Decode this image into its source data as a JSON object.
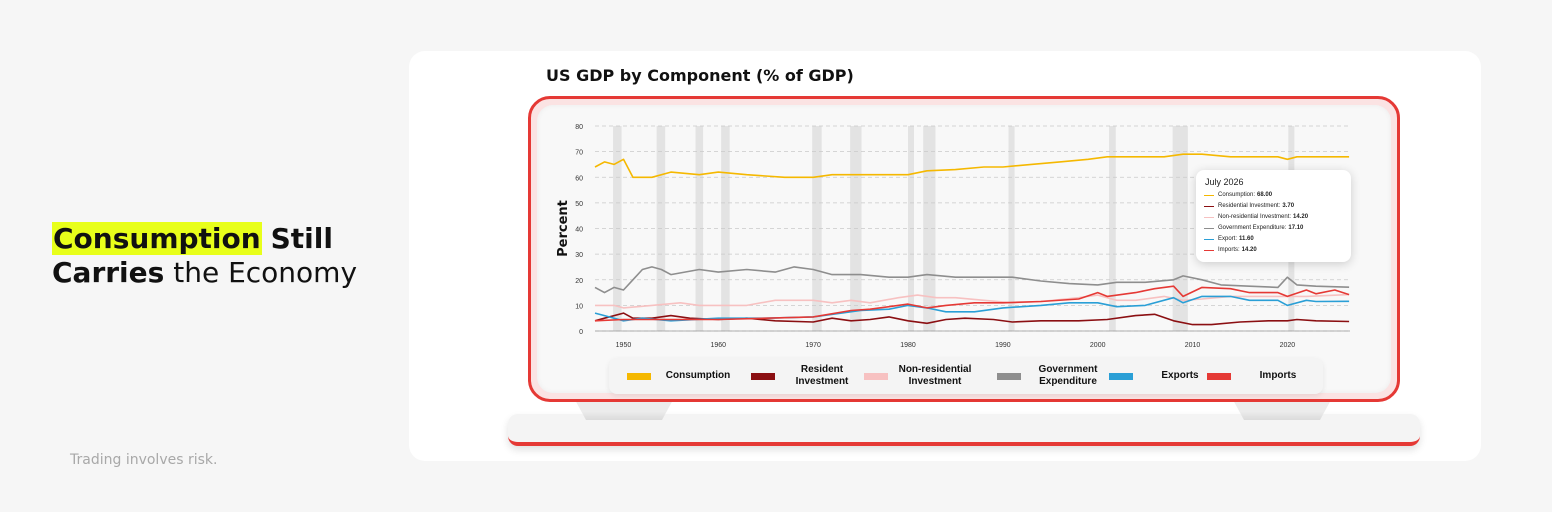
{
  "headline": {
    "word1": "Consumption",
    "word2": "Still",
    "word3": "Carries",
    "word4": "the Economy"
  },
  "disclaimer": "Trading involves risk.",
  "colors": {
    "highlight": "#e8ff1a",
    "accent": "#e53935"
  },
  "chart_data": {
    "type": "line",
    "title": "US GDP by Component (% of GDP)",
    "ylabel": "Percent",
    "xlabel": "",
    "ylim": [
      0,
      80
    ],
    "xlim": [
      1947,
      2026.6
    ],
    "yticks": [
      "0",
      "10",
      "20",
      "30",
      "40",
      "50",
      "60",
      "70",
      "80"
    ],
    "xticks": [
      "1950",
      "1960",
      "1970",
      "1980",
      "1990",
      "2000",
      "2010",
      "2020"
    ],
    "grid": "dashed horizontal",
    "recessions": [
      [
        1948.9,
        1949.8
      ],
      [
        1953.5,
        1954.4
      ],
      [
        1957.6,
        1958.4
      ],
      [
        1960.3,
        1961.2
      ],
      [
        1969.9,
        1970.9
      ],
      [
        1973.9,
        1975.1
      ],
      [
        1980.0,
        1980.6
      ],
      [
        1981.6,
        1982.9
      ],
      [
        1990.6,
        1991.2
      ],
      [
        2001.2,
        2001.9
      ],
      [
        2007.9,
        2009.5
      ],
      [
        2020.1,
        2020.5
      ]
    ],
    "series": [
      {
        "name": "Consumption",
        "color": "#f5b800",
        "points": [
          [
            1947,
            64
          ],
          [
            1948,
            66
          ],
          [
            1949,
            65
          ],
          [
            1950,
            67
          ],
          [
            1951,
            60
          ],
          [
            1952,
            60
          ],
          [
            1953,
            60
          ],
          [
            1955,
            62
          ],
          [
            1958,
            61
          ],
          [
            1960,
            62
          ],
          [
            1963,
            61
          ],
          [
            1967,
            60
          ],
          [
            1970,
            60
          ],
          [
            1972,
            61
          ],
          [
            1975,
            61
          ],
          [
            1978,
            61
          ],
          [
            1980,
            61
          ],
          [
            1982,
            62.5
          ],
          [
            1985,
            63
          ],
          [
            1988,
            64
          ],
          [
            1990,
            64
          ],
          [
            1993,
            65
          ],
          [
            1996,
            66
          ],
          [
            1999,
            67
          ],
          [
            2001,
            68
          ],
          [
            2004,
            68
          ],
          [
            2007,
            68
          ],
          [
            2009,
            69
          ],
          [
            2011,
            69
          ],
          [
            2014,
            68
          ],
          [
            2017,
            68
          ],
          [
            2019,
            68
          ],
          [
            2020,
            67
          ],
          [
            2021,
            68
          ],
          [
            2023,
            68
          ],
          [
            2026.5,
            68
          ]
        ]
      },
      {
        "name": "Residential Investment",
        "color": "#8b0f12",
        "points": [
          [
            1947,
            4
          ],
          [
            1948,
            5
          ],
          [
            1950,
            7
          ],
          [
            1951,
            5
          ],
          [
            1953,
            5
          ],
          [
            1955,
            6
          ],
          [
            1957,
            5
          ],
          [
            1960,
            4.5
          ],
          [
            1963,
            5
          ],
          [
            1966,
            4
          ],
          [
            1970,
            3.5
          ],
          [
            1972,
            5
          ],
          [
            1974,
            4
          ],
          [
            1976,
            4.5
          ],
          [
            1978,
            5.5
          ],
          [
            1980,
            4
          ],
          [
            1982,
            3
          ],
          [
            1984,
            4.5
          ],
          [
            1986,
            5
          ],
          [
            1989,
            4.5
          ],
          [
            1991,
            3.5
          ],
          [
            1994,
            4
          ],
          [
            1998,
            4
          ],
          [
            2001,
            4.5
          ],
          [
            2004,
            6
          ],
          [
            2006,
            6.5
          ],
          [
            2008,
            4
          ],
          [
            2010,
            2.5
          ],
          [
            2012,
            2.5
          ],
          [
            2015,
            3.5
          ],
          [
            2018,
            4
          ],
          [
            2020,
            4
          ],
          [
            2021,
            4.5
          ],
          [
            2023,
            4
          ],
          [
            2026.5,
            3.7
          ]
        ]
      },
      {
        "name": "Non-residential Investment",
        "color": "#f7c1c1",
        "points": [
          [
            1947,
            10
          ],
          [
            1949,
            10
          ],
          [
            1950,
            9
          ],
          [
            1953,
            10
          ],
          [
            1956,
            11
          ],
          [
            1958,
            10
          ],
          [
            1960,
            10
          ],
          [
            1963,
            10
          ],
          [
            1966,
            12
          ],
          [
            1970,
            12
          ],
          [
            1972,
            11
          ],
          [
            1974,
            12
          ],
          [
            1976,
            11
          ],
          [
            1979,
            13
          ],
          [
            1981,
            14
          ],
          [
            1983,
            13
          ],
          [
            1985,
            13
          ],
          [
            1988,
            12
          ],
          [
            1991,
            11
          ],
          [
            1994,
            11.5
          ],
          [
            1998,
            13
          ],
          [
            2000,
            14
          ],
          [
            2002,
            12
          ],
          [
            2004,
            12
          ],
          [
            2007,
            13.5
          ],
          [
            2009,
            12
          ],
          [
            2011,
            12.5
          ],
          [
            2014,
            13.5
          ],
          [
            2017,
            13.5
          ],
          [
            2020,
            13.5
          ],
          [
            2022,
            13.5
          ],
          [
            2026.5,
            14.2
          ]
        ]
      },
      {
        "name": "Government Expenditure",
        "color": "#8e8e8e",
        "points": [
          [
            1947,
            17
          ],
          [
            1948,
            15
          ],
          [
            1949,
            17
          ],
          [
            1950,
            16
          ],
          [
            1951,
            20
          ],
          [
            1952,
            24
          ],
          [
            1953,
            25
          ],
          [
            1954,
            24
          ],
          [
            1955,
            22
          ],
          [
            1958,
            24
          ],
          [
            1960,
            23
          ],
          [
            1963,
            24
          ],
          [
            1966,
            23
          ],
          [
            1968,
            25
          ],
          [
            1970,
            24
          ],
          [
            1972,
            22
          ],
          [
            1975,
            22
          ],
          [
            1978,
            21
          ],
          [
            1980,
            21
          ],
          [
            1982,
            22
          ],
          [
            1985,
            21
          ],
          [
            1988,
            21
          ],
          [
            1991,
            21
          ],
          [
            1994,
            19.5
          ],
          [
            1997,
            18.5
          ],
          [
            2000,
            18
          ],
          [
            2002,
            19
          ],
          [
            2005,
            19
          ],
          [
            2008,
            20
          ],
          [
            2009,
            21.5
          ],
          [
            2011,
            20
          ],
          [
            2013,
            18
          ],
          [
            2016,
            17.5
          ],
          [
            2019,
            17
          ],
          [
            2020,
            21
          ],
          [
            2021,
            18
          ],
          [
            2023,
            17.5
          ],
          [
            2026.5,
            17.1
          ]
        ]
      },
      {
        "name": "Exports",
        "color": "#2a9fd6",
        "points": [
          [
            1947,
            7
          ],
          [
            1948,
            6
          ],
          [
            1950,
            4
          ],
          [
            1952,
            5
          ],
          [
            1955,
            4
          ],
          [
            1960,
            5
          ],
          [
            1965,
            5
          ],
          [
            1970,
            5.5
          ],
          [
            1973,
            7
          ],
          [
            1975,
            8
          ],
          [
            1978,
            8.5
          ],
          [
            1980,
            10
          ],
          [
            1982,
            9
          ],
          [
            1984,
            7.5
          ],
          [
            1987,
            7.5
          ],
          [
            1990,
            9
          ],
          [
            1994,
            10
          ],
          [
            1997,
            11
          ],
          [
            2000,
            11
          ],
          [
            2002,
            9.5
          ],
          [
            2005,
            10
          ],
          [
            2008,
            13
          ],
          [
            2009,
            11
          ],
          [
            2011,
            13.5
          ],
          [
            2014,
            13.5
          ],
          [
            2016,
            12
          ],
          [
            2019,
            12
          ],
          [
            2020,
            10
          ],
          [
            2022,
            12
          ],
          [
            2023,
            11.5
          ],
          [
            2026.5,
            11.6
          ]
        ]
      },
      {
        "name": "Imports",
        "color": "#e53935",
        "points": [
          [
            1947,
            4
          ],
          [
            1950,
            4.5
          ],
          [
            1955,
            4.5
          ],
          [
            1960,
            4.5
          ],
          [
            1965,
            5
          ],
          [
            1970,
            5.5
          ],
          [
            1974,
            8
          ],
          [
            1976,
            8.5
          ],
          [
            1980,
            10.5
          ],
          [
            1982,
            9
          ],
          [
            1984,
            10
          ],
          [
            1987,
            11
          ],
          [
            1990,
            11
          ],
          [
            1994,
            11.5
          ],
          [
            1998,
            12.5
          ],
          [
            2000,
            15
          ],
          [
            2001,
            13.5
          ],
          [
            2004,
            15
          ],
          [
            2006,
            16.5
          ],
          [
            2008,
            17.5
          ],
          [
            2009,
            13.5
          ],
          [
            2011,
            17
          ],
          [
            2014,
            16.5
          ],
          [
            2016,
            15
          ],
          [
            2019,
            15
          ],
          [
            2020,
            13.5
          ],
          [
            2022,
            16
          ],
          [
            2023,
            14.5
          ],
          [
            2025,
            16
          ],
          [
            2026.5,
            14.2
          ]
        ]
      }
    ],
    "tooltip": {
      "date": "July 2026",
      "rows": [
        {
          "label": "Consumption:",
          "value": "68.00",
          "color": "#f5b800"
        },
        {
          "label": "Residential Investment:",
          "value": "3.70",
          "color": "#8b0f12"
        },
        {
          "label": "Non-residential Investment:",
          "value": "14.20",
          "color": "#f7c1c1"
        },
        {
          "label": "Government Expenditure:",
          "value": "17.10",
          "color": "#8e8e8e"
        },
        {
          "label": "Export:",
          "value": "11.60",
          "color": "#2a9fd6"
        },
        {
          "label": "Imports:",
          "value": "14.20",
          "color": "#e53935"
        }
      ]
    },
    "legend": [
      {
        "label": "Consumption",
        "color": "#f5b800"
      },
      {
        "label": "Resident Investment",
        "color": "#8b0f12"
      },
      {
        "label": "Non-residential Investment",
        "color": "#f7c1c1"
      },
      {
        "label": "Government Expenditure",
        "color": "#8e8e8e"
      },
      {
        "label": "Exports",
        "color": "#2a9fd6"
      },
      {
        "label": "Imports",
        "color": "#e53935"
      }
    ]
  }
}
